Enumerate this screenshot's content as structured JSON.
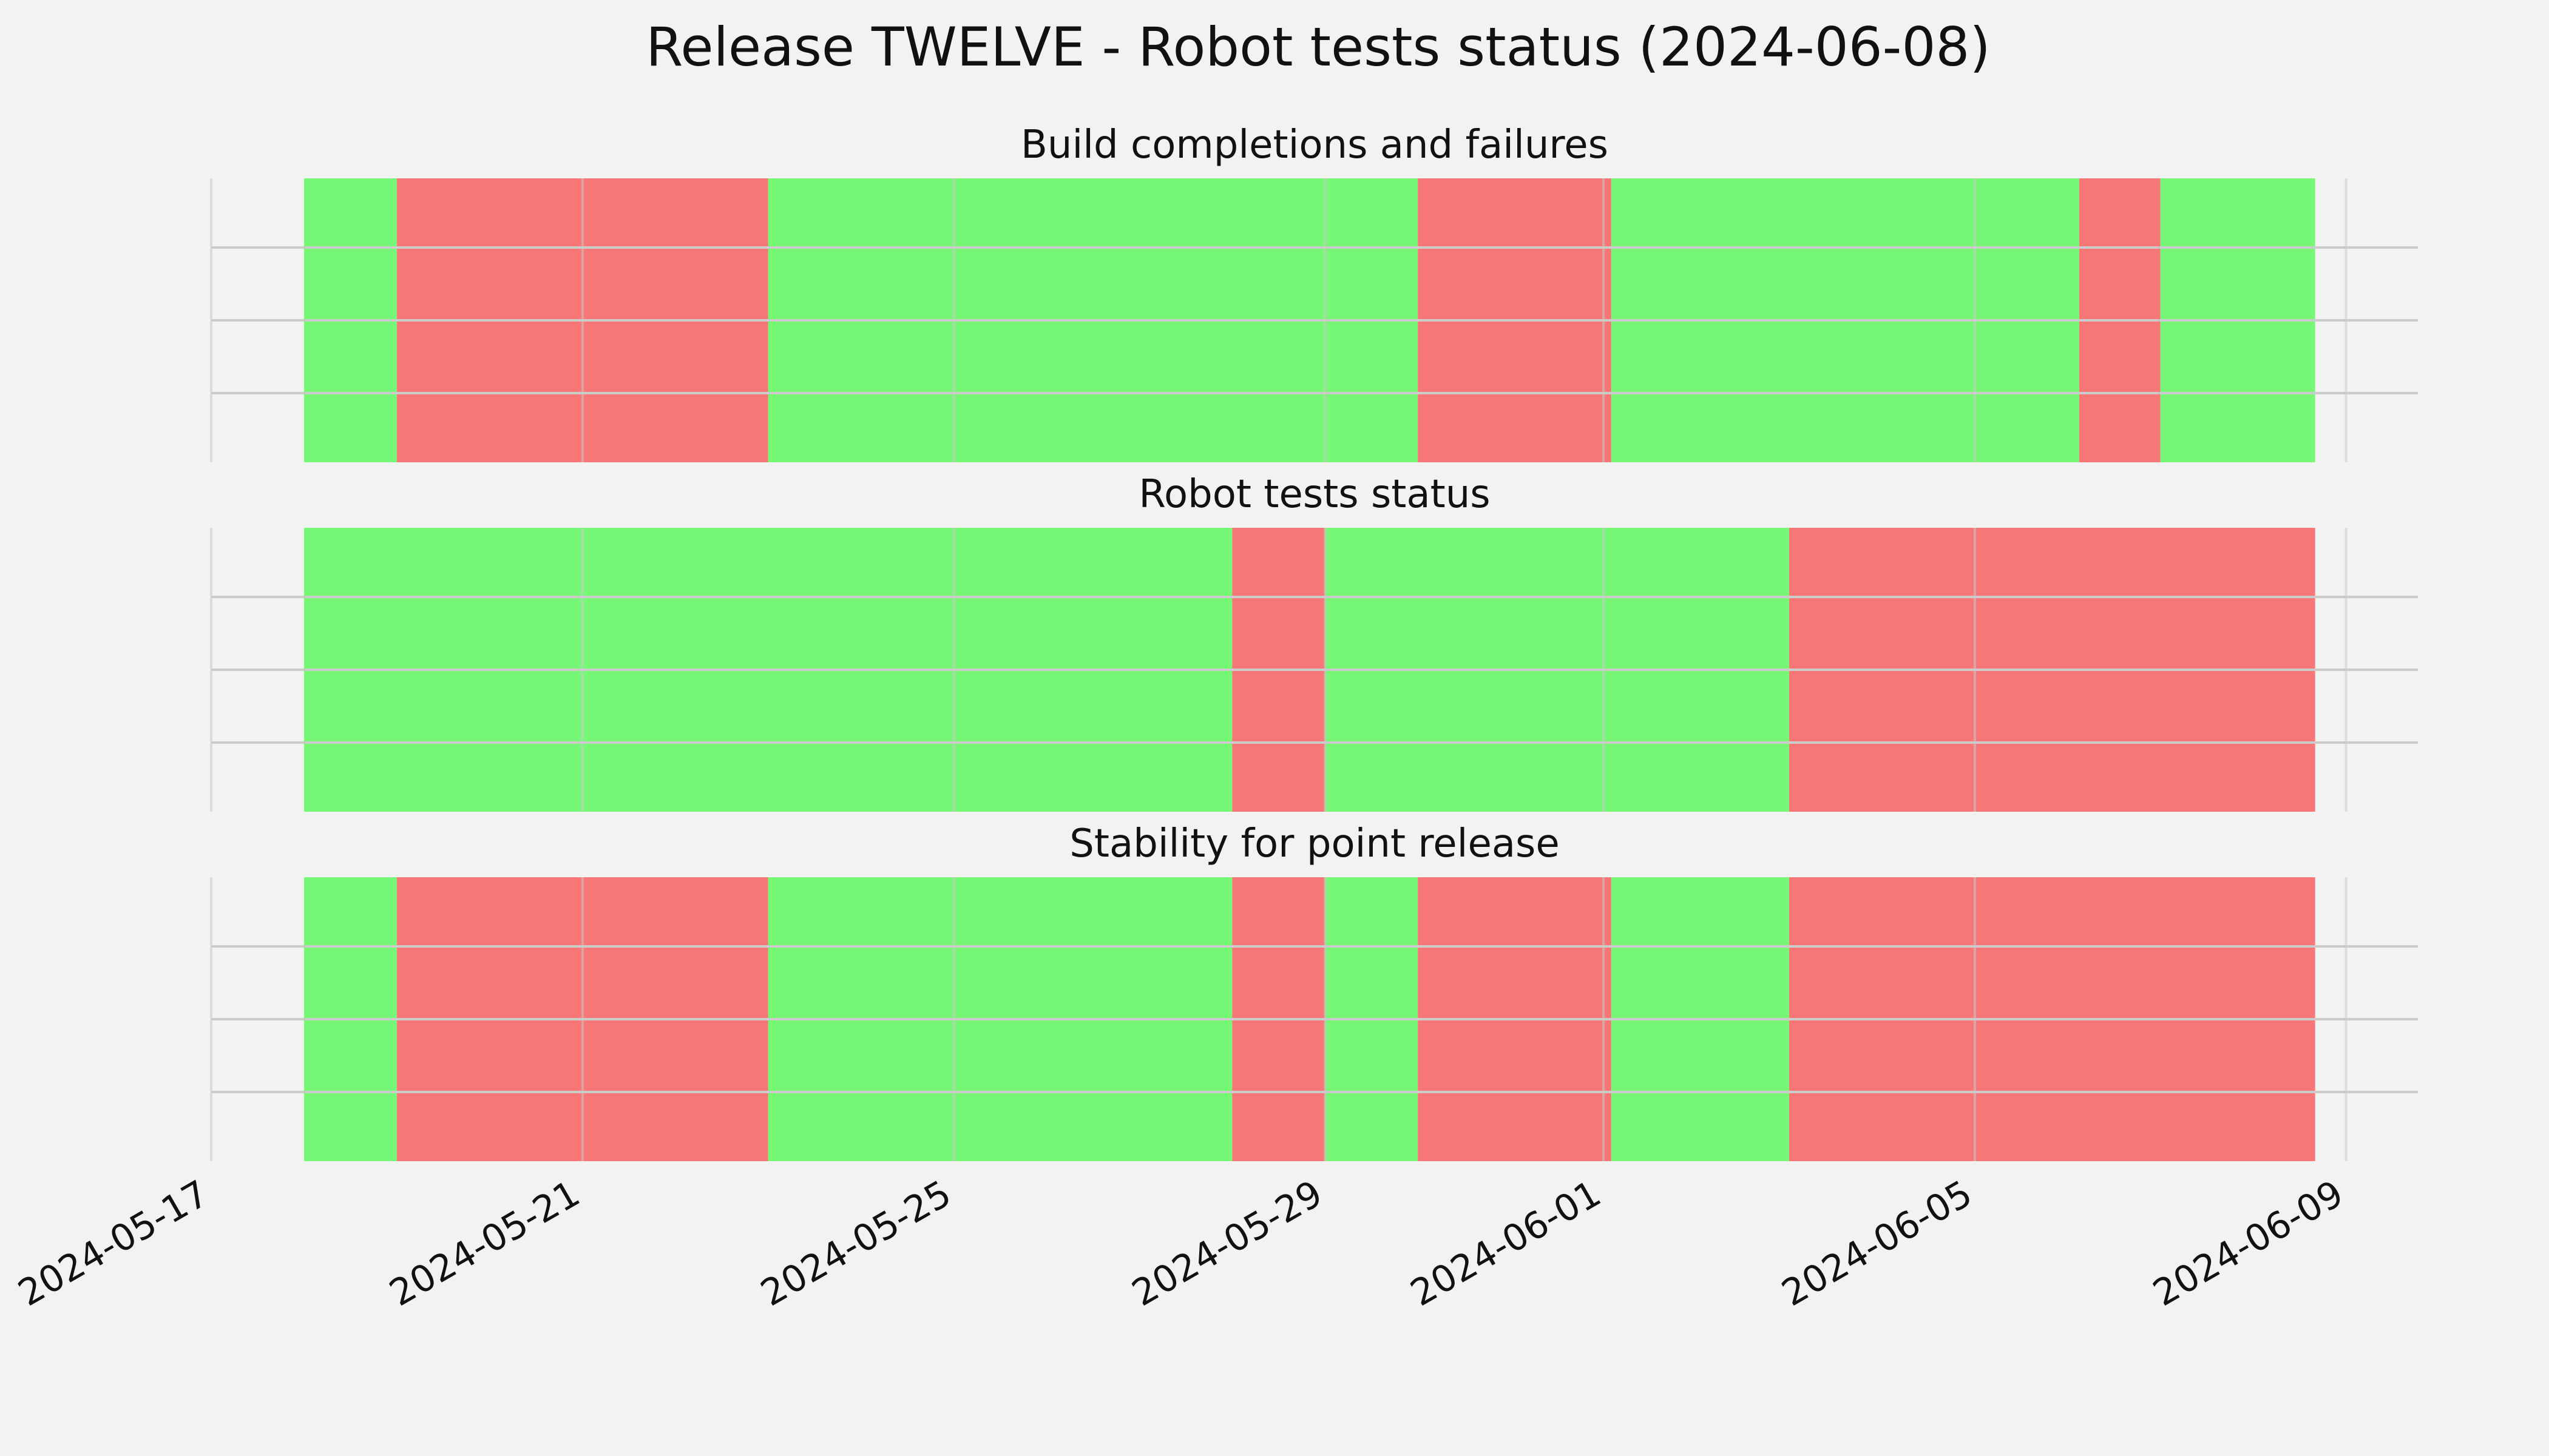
{
  "title": "Release TWELVE - Robot tests status (2024-06-08)",
  "colors": {
    "pass": "#76f776",
    "fail": "#f77676",
    "background": "#f2f2f2",
    "grid": "#cbcbcb"
  },
  "chart_data": {
    "type": "timeline",
    "x_axis": {
      "type": "date",
      "range": [
        "2024-05-17",
        "2024-06-09 01:00"
      ],
      "ticks": [
        "2024-05-17",
        "2024-05-21",
        "2024-05-25",
        "2024-05-29",
        "2024-06-01",
        "2024-06-05",
        "2024-06-09"
      ]
    },
    "grid": true,
    "panels": [
      {
        "title": "Build completions and failures",
        "segments": [
          {
            "start": "2024-05-18",
            "end": "2024-05-19",
            "status": "pass"
          },
          {
            "start": "2024-05-19",
            "end": "2024-05-23",
            "status": "fail"
          },
          {
            "start": "2024-05-23",
            "end": "2024-05-30",
            "status": "pass"
          },
          {
            "start": "2024-05-30",
            "end": "2024-06-01 02:00",
            "status": "fail"
          },
          {
            "start": "2024-06-01 02:00",
            "end": "2024-06-06 03:00",
            "status": "pass"
          },
          {
            "start": "2024-06-06 03:00",
            "end": "2024-06-07",
            "status": "fail"
          },
          {
            "start": "2024-06-07",
            "end": "2024-06-08 16:00",
            "status": "pass"
          }
        ]
      },
      {
        "title": "Robot tests status",
        "segments": [
          {
            "start": "2024-05-18",
            "end": "2024-05-28",
            "status": "pass"
          },
          {
            "start": "2024-05-28",
            "end": "2024-05-29",
            "status": "fail"
          },
          {
            "start": "2024-05-29",
            "end": "2024-06-03",
            "status": "pass"
          },
          {
            "start": "2024-06-03",
            "end": "2024-06-08 16:00",
            "status": "fail"
          }
        ]
      },
      {
        "title": "Stability for point release",
        "segments": [
          {
            "start": "2024-05-18",
            "end": "2024-05-19",
            "status": "pass"
          },
          {
            "start": "2024-05-19",
            "end": "2024-05-23",
            "status": "fail"
          },
          {
            "start": "2024-05-23",
            "end": "2024-05-28",
            "status": "pass"
          },
          {
            "start": "2024-05-28",
            "end": "2024-05-29",
            "status": "fail"
          },
          {
            "start": "2024-05-29",
            "end": "2024-05-30",
            "status": "pass"
          },
          {
            "start": "2024-05-30",
            "end": "2024-06-01 02:00",
            "status": "fail"
          },
          {
            "start": "2024-06-01 02:00",
            "end": "2024-06-03",
            "status": "pass"
          },
          {
            "start": "2024-06-03",
            "end": "2024-06-08 16:00",
            "status": "fail"
          }
        ]
      }
    ]
  }
}
